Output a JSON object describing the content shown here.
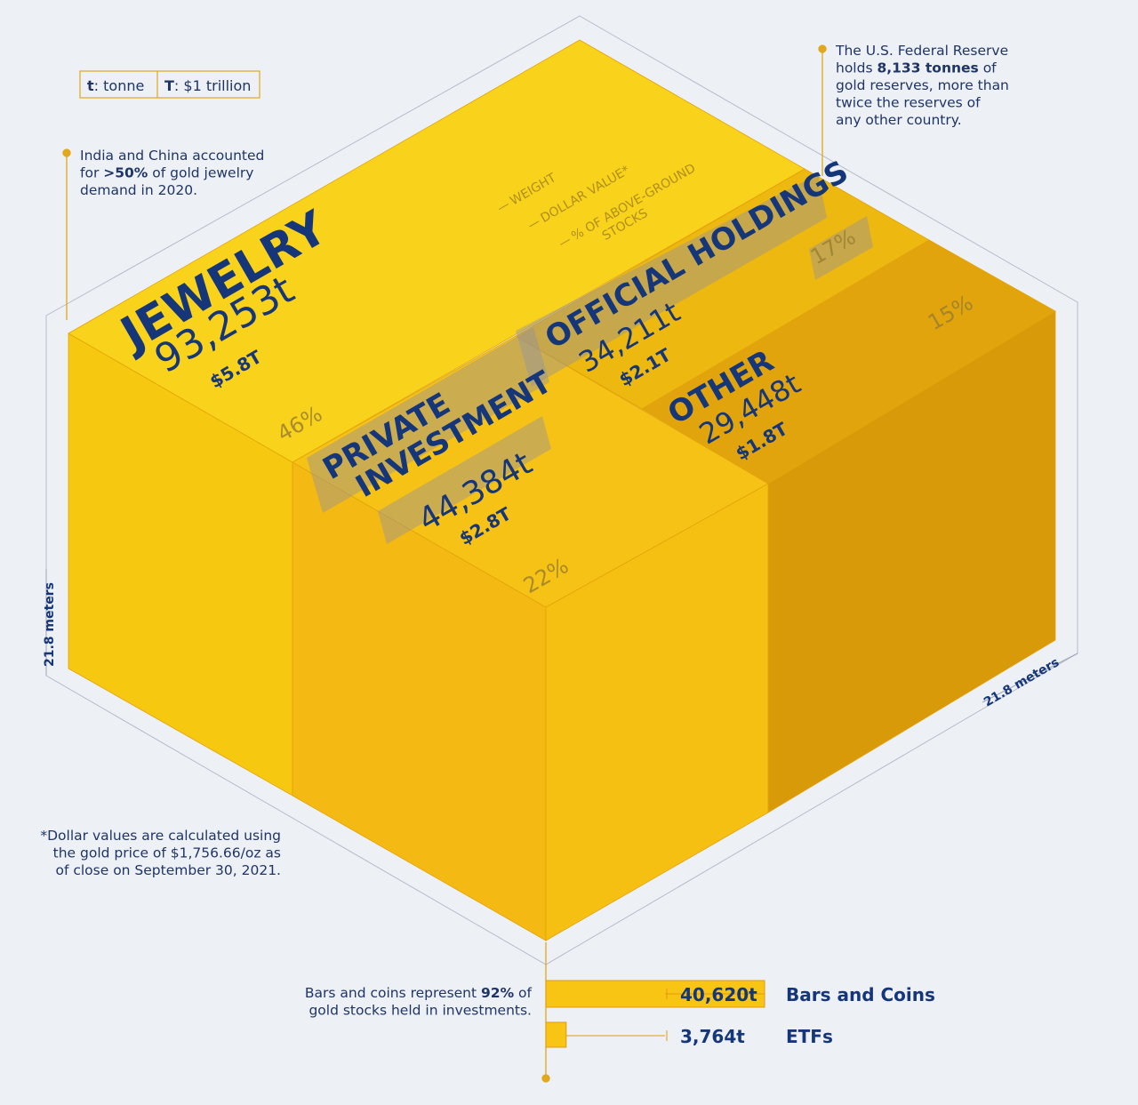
{
  "legend_box": {
    "items": [
      {
        "symbol": "t",
        "meaning": ": tonne"
      },
      {
        "symbol": "T",
        "meaning": ": $1 trillion"
      }
    ]
  },
  "key_labels": {
    "weight": "WEIGHT",
    "dollar_value": "DOLLAR VALUE*",
    "share": [
      "% OF ABOVE-GROUND",
      "STOCKS"
    ]
  },
  "segments": [
    {
      "name": [
        "JEWELRY"
      ],
      "weight": "93,253t",
      "value": "$5.8T",
      "share": "46%"
    },
    {
      "name": [
        "PRIVATE",
        "INVESTMENT"
      ],
      "weight": "44,384t",
      "value": "$2.8T",
      "share": "22%"
    },
    {
      "name": [
        "OFFICIAL HOLDINGS"
      ],
      "weight": "34,211t",
      "value": "$2.1T",
      "share": "17%"
    },
    {
      "name": [
        "OTHER"
      ],
      "weight": "29,448t",
      "value": "$1.8T",
      "share": "15%"
    }
  ],
  "dimensions": {
    "height": "21.8 meters",
    "depth": "21.8 meters"
  },
  "notes": {
    "jewelry": {
      "lines": [
        [
          "India and China accounted"
        ],
        [
          "for ",
          {
            "bold": ">50%"
          },
          " of gold jewelry"
        ],
        [
          "demand in 2020."
        ]
      ]
    },
    "reserve": {
      "lines": [
        [
          "The U.S. Federal Reserve"
        ],
        [
          "holds ",
          {
            "bold": "8,133 tonnes"
          },
          " of"
        ],
        [
          "gold reserves, more than"
        ],
        [
          "twice the reserves of"
        ],
        [
          "any other country."
        ]
      ]
    },
    "footnote": {
      "lines": [
        [
          "*Dollar values are calculated using"
        ],
        [
          "the gold price of $1,756.66/oz as"
        ],
        [
          "of close on September 30, 2021."
        ]
      ]
    },
    "investment": {
      "lines": [
        [
          "Bars and coins represent ",
          {
            "bold": "92%"
          },
          " of"
        ],
        [
          "gold stocks held in investments."
        ]
      ]
    }
  },
  "investment_breakdown": [
    {
      "label": "Bars and Coins",
      "value": 40620,
      "value_label": "40,620t"
    },
    {
      "label": "ETFs",
      "value": 3764,
      "value_label": "3,764t"
    }
  ]
}
